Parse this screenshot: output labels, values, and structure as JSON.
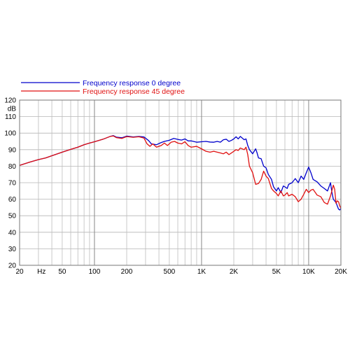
{
  "chart_data": {
    "type": "line",
    "title": "",
    "xlabel": "",
    "ylabel": "dB",
    "x_scale": "log",
    "xlim": [
      20,
      20000
    ],
    "ylim": [
      20,
      120
    ],
    "grid": true,
    "legend_placement": "top-left, above plot",
    "x_ticks": [
      {
        "value": 20,
        "label": "20"
      },
      {
        "value": 50,
        "label": "50"
      },
      {
        "value": 100,
        "label": "100"
      },
      {
        "value": 200,
        "label": "200"
      },
      {
        "value": 500,
        "label": "500"
      },
      {
        "value": 1000,
        "label": "1K"
      },
      {
        "value": 2000,
        "label": "2K"
      },
      {
        "value": 5000,
        "label": "5K"
      },
      {
        "value": 10000,
        "label": "10K"
      },
      {
        "value": 20000,
        "label": "20K"
      }
    ],
    "x_unit_label": "Hz",
    "y_ticks": [
      20,
      30,
      40,
      50,
      60,
      70,
      80,
      90,
      100,
      110,
      120
    ],
    "series": [
      {
        "name": "Frequency response 0 degree",
        "color": "#0000cc",
        "points": [
          [
            20,
            80.5
          ],
          [
            25,
            82.5
          ],
          [
            30,
            84.0
          ],
          [
            35,
            85.0
          ],
          [
            40,
            86.3
          ],
          [
            50,
            88.5
          ],
          [
            60,
            90.2
          ],
          [
            70,
            91.5
          ],
          [
            80,
            93.0
          ],
          [
            90,
            94.0
          ],
          [
            100,
            94.8
          ],
          [
            120,
            96.3
          ],
          [
            140,
            98.0
          ],
          [
            150,
            98.5
          ],
          [
            160,
            97.6
          ],
          [
            180,
            97.2
          ],
          [
            200,
            98.2
          ],
          [
            230,
            97.7
          ],
          [
            260,
            98.0
          ],
          [
            290,
            97.7
          ],
          [
            320,
            95.5
          ],
          [
            340,
            93.5
          ],
          [
            380,
            93.0
          ],
          [
            420,
            94.3
          ],
          [
            450,
            95.0
          ],
          [
            500,
            95.7
          ],
          [
            550,
            96.8
          ],
          [
            600,
            96.2
          ],
          [
            650,
            95.8
          ],
          [
            700,
            96.5
          ],
          [
            750,
            95.3
          ],
          [
            800,
            95.3
          ],
          [
            900,
            94.5
          ],
          [
            1000,
            94.8
          ],
          [
            1100,
            95.0
          ],
          [
            1200,
            94.6
          ],
          [
            1300,
            94.5
          ],
          [
            1400,
            95.0
          ],
          [
            1500,
            94.5
          ],
          [
            1600,
            96.0
          ],
          [
            1700,
            96.3
          ],
          [
            1800,
            95.0
          ],
          [
            1900,
            95.6
          ],
          [
            2000,
            96.5
          ],
          [
            2100,
            97.8
          ],
          [
            2200,
            96.5
          ],
          [
            2300,
            98.0
          ],
          [
            2400,
            97.0
          ],
          [
            2500,
            96.0
          ],
          [
            2600,
            96.5
          ],
          [
            2700,
            92.5
          ],
          [
            2800,
            90.0
          ],
          [
            3000,
            87.5
          ],
          [
            3200,
            90.5
          ],
          [
            3300,
            88.0
          ],
          [
            3400,
            85.0
          ],
          [
            3600,
            84.5
          ],
          [
            3800,
            80.0
          ],
          [
            4000,
            79.0
          ],
          [
            4200,
            75.0
          ],
          [
            4500,
            72.0
          ],
          [
            4700,
            67.5
          ],
          [
            5000,
            65.0
          ],
          [
            5200,
            67.0
          ],
          [
            5500,
            64.0
          ],
          [
            5800,
            68.0
          ],
          [
            6000,
            67.5
          ],
          [
            6300,
            66.5
          ],
          [
            6500,
            69.0
          ],
          [
            7000,
            70.0
          ],
          [
            7500,
            72.5
          ],
          [
            8000,
            70.0
          ],
          [
            8500,
            74.0
          ],
          [
            9000,
            72.0
          ],
          [
            9500,
            76.0
          ],
          [
            10000,
            79.5
          ],
          [
            10500,
            76.0
          ],
          [
            11000,
            72.0
          ],
          [
            12000,
            70.5
          ],
          [
            13000,
            68.0
          ],
          [
            14000,
            66.5
          ],
          [
            15000,
            65.0
          ],
          [
            16000,
            70.0
          ],
          [
            16500,
            64.0
          ],
          [
            17000,
            60.0
          ],
          [
            18000,
            58.0
          ],
          [
            19000,
            54.0
          ],
          [
            19500,
            53.5
          ],
          [
            20000,
            54.5
          ]
        ]
      },
      {
        "name": "Frequency response 45 degree",
        "color": "#e01010",
        "points": [
          [
            20,
            80.5
          ],
          [
            25,
            82.5
          ],
          [
            30,
            84.0
          ],
          [
            35,
            85.0
          ],
          [
            40,
            86.3
          ],
          [
            50,
            88.5
          ],
          [
            60,
            90.2
          ],
          [
            70,
            91.5
          ],
          [
            80,
            93.0
          ],
          [
            90,
            94.0
          ],
          [
            100,
            94.8
          ],
          [
            120,
            96.3
          ],
          [
            140,
            98.0
          ],
          [
            150,
            98.3
          ],
          [
            160,
            97.3
          ],
          [
            180,
            96.8
          ],
          [
            200,
            97.9
          ],
          [
            230,
            97.5
          ],
          [
            260,
            97.8
          ],
          [
            290,
            97.0
          ],
          [
            310,
            93.5
          ],
          [
            330,
            92.0
          ],
          [
            350,
            93.5
          ],
          [
            380,
            91.5
          ],
          [
            420,
            92.5
          ],
          [
            450,
            94.0
          ],
          [
            480,
            92.5
          ],
          [
            520,
            94.5
          ],
          [
            560,
            95.0
          ],
          [
            600,
            94.0
          ],
          [
            650,
            93.5
          ],
          [
            700,
            94.8
          ],
          [
            750,
            92.5
          ],
          [
            800,
            91.5
          ],
          [
            900,
            92.0
          ],
          [
            1000,
            90.5
          ],
          [
            1100,
            89.0
          ],
          [
            1200,
            88.5
          ],
          [
            1300,
            89.0
          ],
          [
            1400,
            88.5
          ],
          [
            1500,
            88.0
          ],
          [
            1600,
            87.5
          ],
          [
            1700,
            88.5
          ],
          [
            1800,
            87.0
          ],
          [
            1900,
            88.0
          ],
          [
            2000,
            89.0
          ],
          [
            2100,
            90.0
          ],
          [
            2200,
            89.5
          ],
          [
            2300,
            91.0
          ],
          [
            2500,
            90.0
          ],
          [
            2600,
            91.5
          ],
          [
            2700,
            87.0
          ],
          [
            2800,
            80.0
          ],
          [
            3000,
            76.0
          ],
          [
            3200,
            69.0
          ],
          [
            3400,
            69.5
          ],
          [
            3600,
            72.0
          ],
          [
            3800,
            77.0
          ],
          [
            4000,
            74.0
          ],
          [
            4200,
            72.5
          ],
          [
            4500,
            66.5
          ],
          [
            4700,
            65.0
          ],
          [
            5000,
            63.5
          ],
          [
            5200,
            62.0
          ],
          [
            5500,
            65.0
          ],
          [
            5800,
            62.0
          ],
          [
            6000,
            62.5
          ],
          [
            6300,
            64.0
          ],
          [
            6500,
            62.0
          ],
          [
            7000,
            63.0
          ],
          [
            7500,
            61.5
          ],
          [
            8000,
            58.5
          ],
          [
            8500,
            60.0
          ],
          [
            9000,
            63.0
          ],
          [
            9500,
            66.0
          ],
          [
            10000,
            64.0
          ],
          [
            10500,
            65.5
          ],
          [
            11000,
            66.0
          ],
          [
            12000,
            62.5
          ],
          [
            13000,
            61.5
          ],
          [
            14000,
            58.0
          ],
          [
            15000,
            57.0
          ],
          [
            16000,
            62.0
          ],
          [
            17000,
            68.5
          ],
          [
            17500,
            66.0
          ],
          [
            18000,
            57.5
          ],
          [
            18500,
            59.0
          ],
          [
            19000,
            58.5
          ],
          [
            19500,
            56.0
          ],
          [
            20000,
            54.5
          ]
        ]
      }
    ]
  }
}
